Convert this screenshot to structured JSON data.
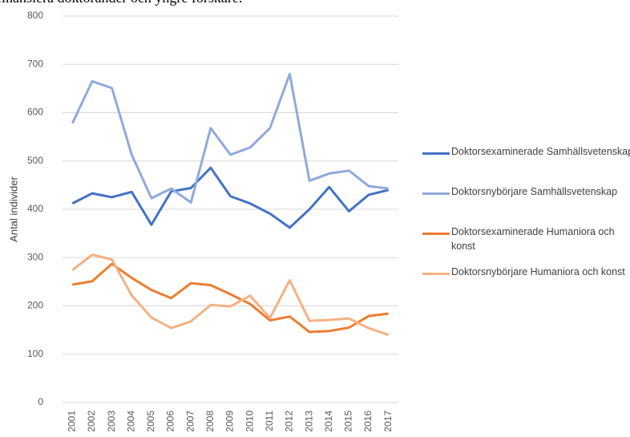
{
  "chart_data": {
    "type": "line",
    "title": "finansiera doktorander och yngre forskare.",
    "y_label": "Antal individer",
    "categories": [
      "2001",
      "2002",
      "2003",
      "2004",
      "2005",
      "2006",
      "2007",
      "2008",
      "2009",
      "2010",
      "2011",
      "2012",
      "2013",
      "2014",
      "2015",
      "2016",
      "2017"
    ],
    "series": [
      {
        "name": "Doktorsexaminerade Samhällsvetenskap",
        "color": "#4472c4",
        "values": [
          412,
          433,
          425,
          436,
          368,
          437,
          444,
          486,
          427,
          412,
          391,
          362,
          400,
          446,
          396,
          430,
          440
        ]
      },
      {
        "name": "Doktorsnybörjare Samhällsvetenskap",
        "color": "#8faadc",
        "values": [
          578,
          665,
          651,
          513,
          423,
          443,
          414,
          568,
          513,
          528,
          568,
          680,
          459,
          474,
          480,
          448,
          443
        ]
      },
      {
        "name": "Doktorsexaminerade Humaniora och konst",
        "color": "#ed7d31",
        "values": [
          244,
          251,
          287,
          258,
          233,
          216,
          247,
          243,
          224,
          204,
          170,
          178,
          146,
          148,
          155,
          179,
          184
        ]
      },
      {
        "name": "Doktorsnybörjare Humaniora och konst",
        "color": "#f4b183",
        "values": [
          274,
          306,
          296,
          222,
          176,
          154,
          168,
          202,
          199,
          221,
          175,
          253,
          169,
          171,
          174,
          154,
          140
        ]
      }
    ],
    "ylim": [
      0,
      800
    ],
    "yticks": [
      0,
      100,
      200,
      300,
      400,
      500,
      600,
      700,
      800
    ],
    "grid": true
  }
}
